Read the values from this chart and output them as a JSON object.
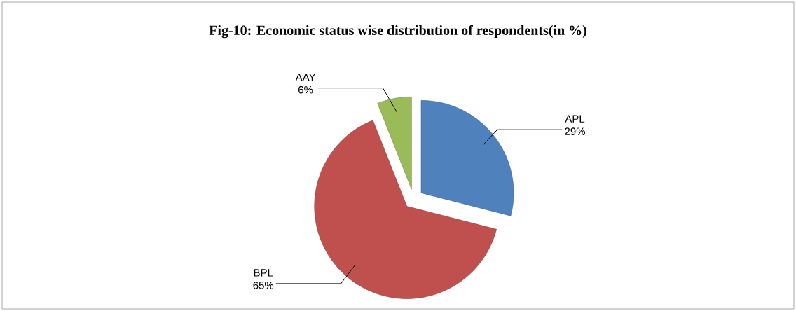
{
  "chart_data": {
    "type": "pie",
    "title": "Fig-10: Economic status wise distribution of respondents(in %)",
    "categories": [
      "APL",
      "BPL",
      "AAY"
    ],
    "values": [
      29,
      65,
      6
    ],
    "value_labels": [
      "29%",
      "65%",
      "6%"
    ],
    "colors": [
      "#4f81bd",
      "#c0504d",
      "#9bbb59"
    ]
  }
}
